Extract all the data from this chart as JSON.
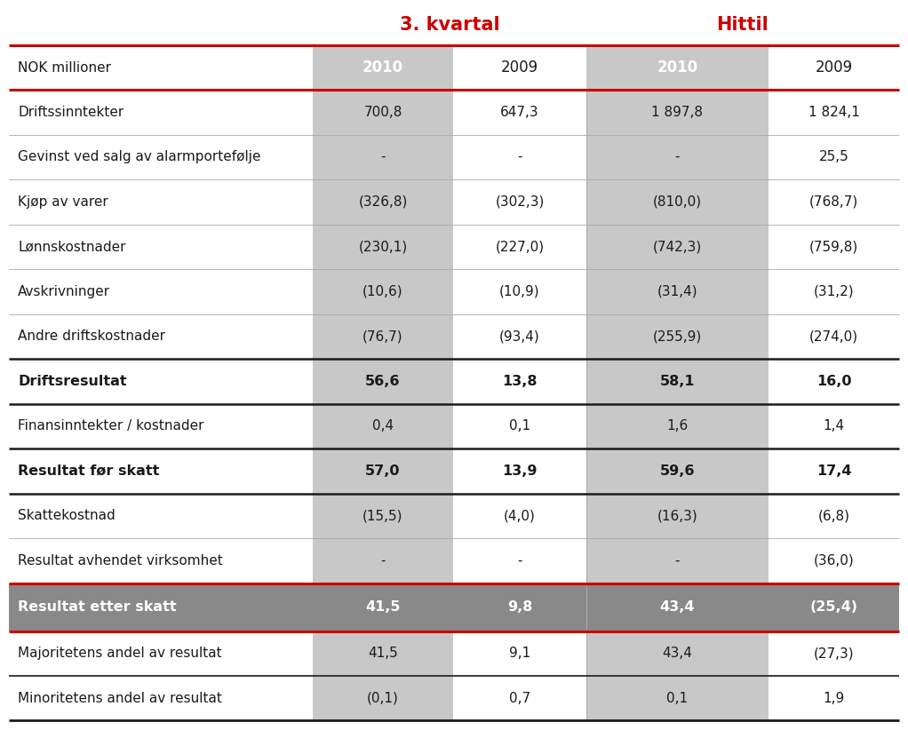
{
  "title_left": "3. kvartal",
  "title_right": "Hittil",
  "col_headers": [
    "NOK millioner",
    "2010",
    "2009",
    "2010",
    "2009"
  ],
  "rows": [
    {
      "label": "Driftssinntekter",
      "vals": [
        "700,8",
        "647,3",
        "1 897,8",
        "1 824,1"
      ],
      "bold": false,
      "dark_bg": false
    },
    {
      "label": "Gevinst ved salg av alarmportefølje",
      "vals": [
        "-",
        "-",
        "-",
        "25,5"
      ],
      "bold": false,
      "dark_bg": false
    },
    {
      "label": "Kjøp av varer",
      "vals": [
        "(326,8)",
        "(302,3)",
        "(810,0)",
        "(768,7)"
      ],
      "bold": false,
      "dark_bg": false
    },
    {
      "label": "Lønnskostnader",
      "vals": [
        "(230,1)",
        "(227,0)",
        "(742,3)",
        "(759,8)"
      ],
      "bold": false,
      "dark_bg": false
    },
    {
      "label": "Avskrivninger",
      "vals": [
        "(10,6)",
        "(10,9)",
        "(31,4)",
        "(31,2)"
      ],
      "bold": false,
      "dark_bg": false
    },
    {
      "label": "Andre driftskostnader",
      "vals": [
        "(76,7)",
        "(93,4)",
        "(255,9)",
        "(274,0)"
      ],
      "bold": false,
      "dark_bg": false
    },
    {
      "label": "Driftsresultat",
      "vals": [
        "56,6",
        "13,8",
        "58,1",
        "16,0"
      ],
      "bold": true,
      "dark_bg": false
    },
    {
      "label": "Finansinntekter / kostnader",
      "vals": [
        "0,4",
        "0,1",
        "1,6",
        "1,4"
      ],
      "bold": false,
      "dark_bg": false
    },
    {
      "label": "Resultat før skatt",
      "vals": [
        "57,0",
        "13,9",
        "59,6",
        "17,4"
      ],
      "bold": true,
      "dark_bg": false
    },
    {
      "label": "Skattekostnad",
      "vals": [
        "(15,5)",
        "(4,0)",
        "(16,3)",
        "(6,8)"
      ],
      "bold": false,
      "dark_bg": false
    },
    {
      "label": "Resultat avhendet virksomhet",
      "vals": [
        "-",
        "-",
        "-",
        "(36,0)"
      ],
      "bold": false,
      "dark_bg": false
    },
    {
      "label": "Resultat etter skatt",
      "vals": [
        "41,5",
        "9,8",
        "43,4",
        "(25,4)"
      ],
      "bold": true,
      "dark_bg": true
    },
    {
      "label": "Majoritetens andel av resultat",
      "vals": [
        "41,5",
        "9,1",
        "43,4",
        "(27,3)"
      ],
      "bold": false,
      "dark_bg": false
    },
    {
      "label": "Minoritetens andel av resultat",
      "vals": [
        "(0,1)",
        "0,7",
        "0,1",
        "1,9"
      ],
      "bold": false,
      "dark_bg": false
    }
  ],
  "light_gray": "#c8c8c8",
  "dark_gray": "#898989",
  "white": "#ffffff",
  "red": "#cc0000",
  "black": "#1a1a1a",
  "text_dark": "#1a1a1a",
  "header_red": "#cc0000",
  "fig_w": 10.22,
  "fig_h": 8.49,
  "dpi": 100
}
